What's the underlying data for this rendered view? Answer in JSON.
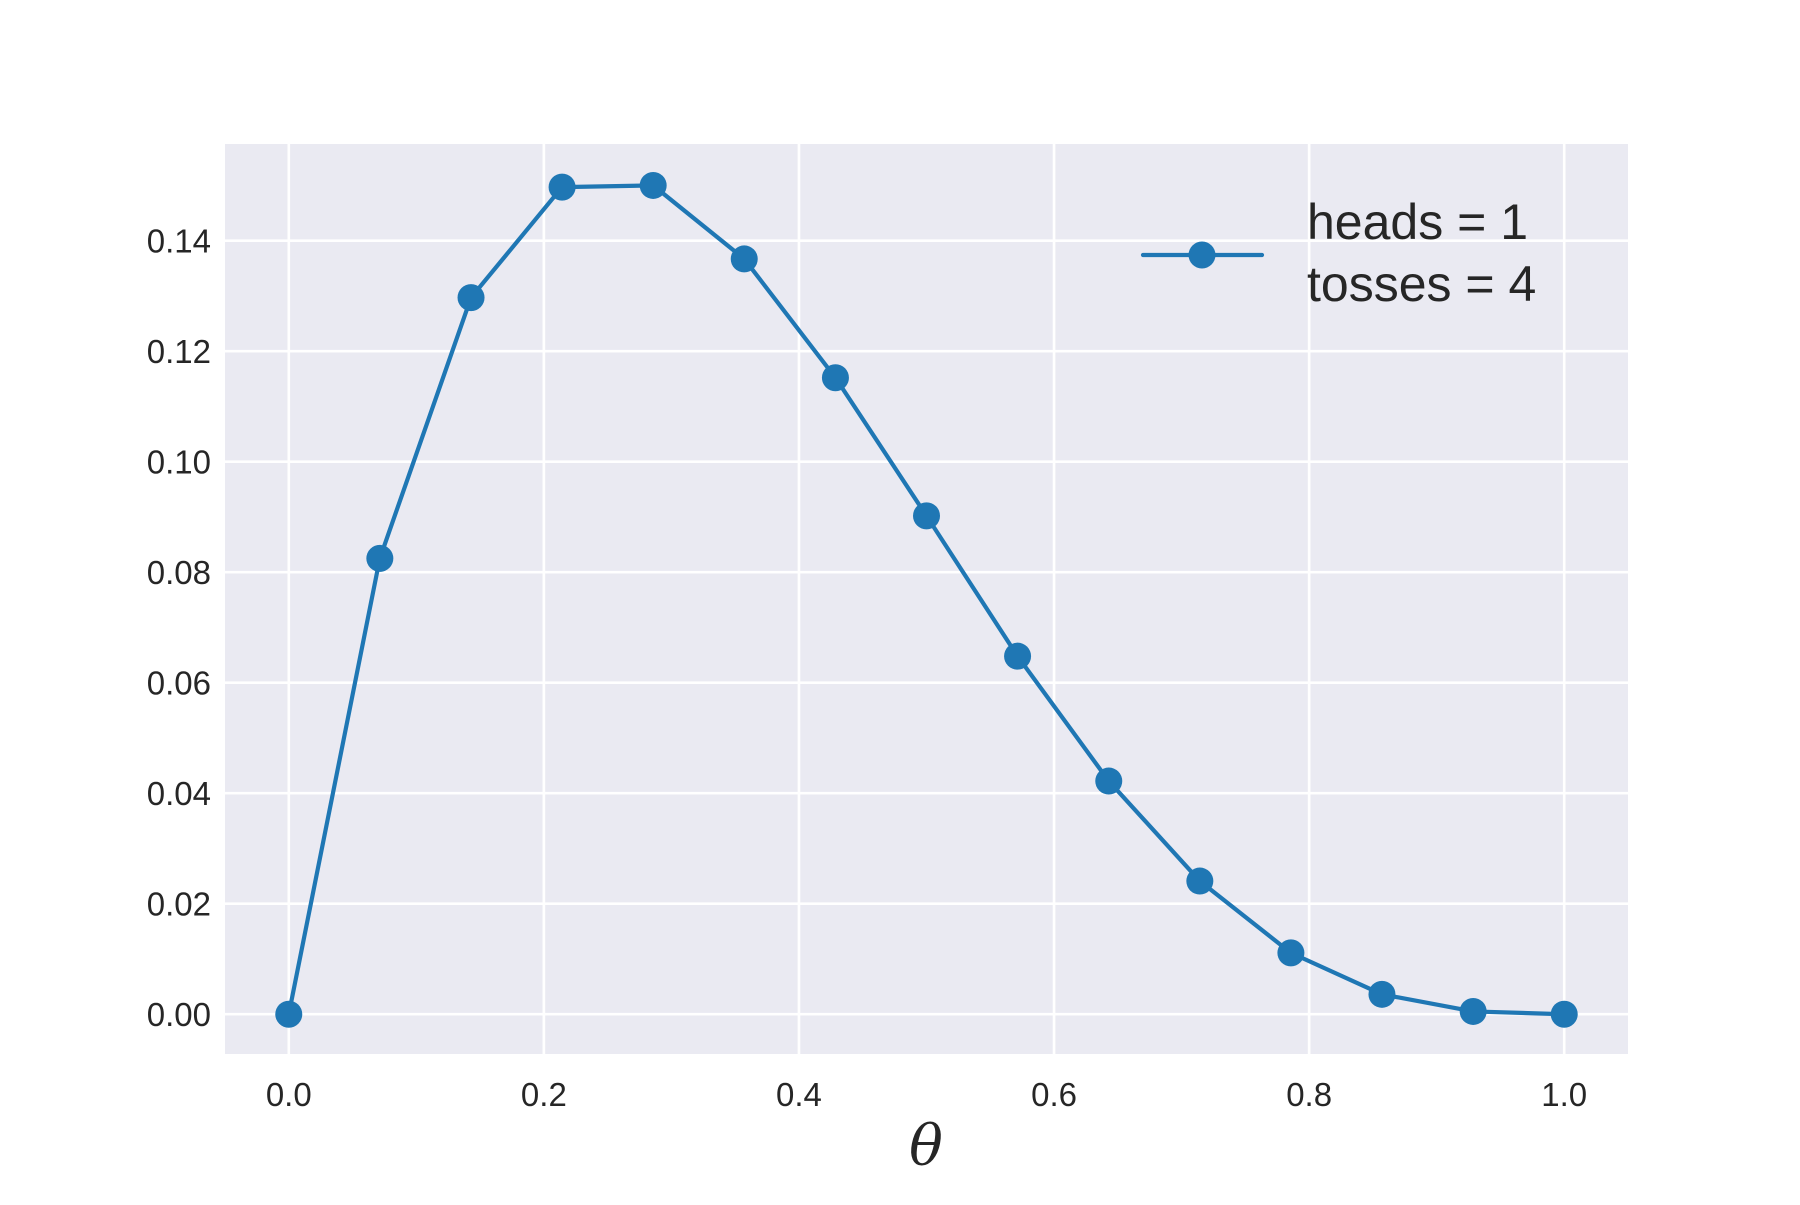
{
  "chart_data": {
    "type": "line",
    "title": "",
    "xlabel": "θ",
    "ylabel": "",
    "xlim": [
      -0.05,
      1.05
    ],
    "ylim": [
      -0.0072,
      0.1575
    ],
    "x_ticks": [
      "0.0",
      "0.2",
      "0.4",
      "0.6",
      "0.8",
      "1.0"
    ],
    "y_ticks": [
      "0.00",
      "0.02",
      "0.04",
      "0.06",
      "0.08",
      "0.10",
      "0.12",
      "0.14"
    ],
    "grid": true,
    "legend_position": "top-right",
    "series": [
      {
        "name": "heads = 1\ntosses = 4",
        "legend_lines": [
          "heads = 1",
          "tosses = 4"
        ],
        "color": "#1f77b4",
        "marker": "circle",
        "x": [
          0.0,
          0.0714,
          0.1429,
          0.2143,
          0.2857,
          0.3571,
          0.4286,
          0.5,
          0.5714,
          0.6429,
          0.7143,
          0.7857,
          0.8571,
          0.9286,
          1.0
        ],
        "y": [
          0.0,
          0.0825,
          0.1297,
          0.1497,
          0.15,
          0.1367,
          0.1152,
          0.0902,
          0.0648,
          0.0422,
          0.0241,
          0.0111,
          0.0036,
          0.0005,
          0.0
        ]
      }
    ]
  },
  "colors": {
    "plot_background": "#eaeaf2",
    "grid": "#ffffff",
    "series": "#1f77b4",
    "text": "#262626"
  }
}
